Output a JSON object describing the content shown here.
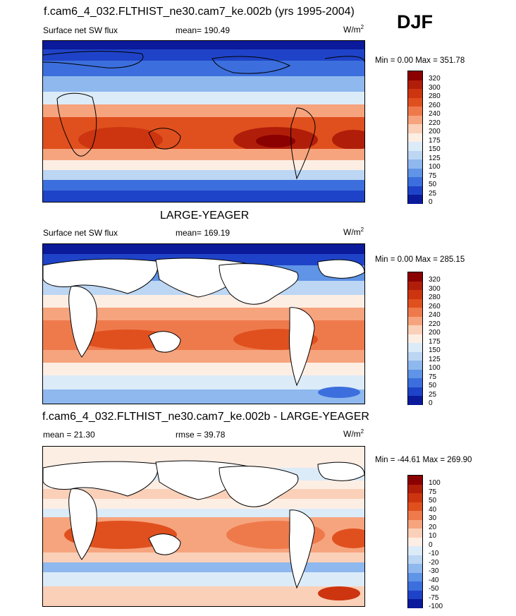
{
  "header": {
    "title": "f.cam6_4_032.FLTHIST_ne30.cam7_ke.002b (yrs 1995-2004)",
    "season": "DJF"
  },
  "panels": [
    {
      "title": "",
      "left_label": "Surface net SW flux",
      "mid_label": "mean= 190.49",
      "units_base": "W/m",
      "units_sup": "2",
      "minmax": "Min =   0.00 Max = 351.78",
      "levels": [
        "320",
        "300",
        "280",
        "260",
        "240",
        "220",
        "200",
        "175",
        "150",
        "125",
        "100",
        "75",
        "50",
        "25",
        "0"
      ]
    },
    {
      "title": "LARGE-YEAGER",
      "left_label": "Surface net SW flux",
      "mid_label": "mean= 169.19",
      "units_base": "W/m",
      "units_sup": "2",
      "minmax": "Min =   0.00 Max = 285.15",
      "levels": [
        "320",
        "300",
        "280",
        "260",
        "240",
        "220",
        "200",
        "175",
        "150",
        "125",
        "100",
        "75",
        "50",
        "25",
        "0"
      ]
    },
    {
      "title": "f.cam6_4_032.FLTHIST_ne30.cam7_ke.002b - LARGE-YEAGER",
      "left_label": "mean =  21.30",
      "mid_label": "rmse =  39.78",
      "units_base": "W/m",
      "units_sup": "2",
      "minmax": "Min = -44.61 Max = 269.90",
      "levels": [
        "100",
        "75",
        "50",
        "40",
        "30",
        "20",
        "10",
        "0",
        "-10",
        "-20",
        "-30",
        "-40",
        "-50",
        "-75",
        "-100"
      ]
    }
  ],
  "colors": {
    "scale": [
      "#8b0000",
      "#b01e0a",
      "#cc3510",
      "#e0501e",
      "#ee7a4c",
      "#f6a47e",
      "#fbd0b8",
      "#fdeee4",
      "#dcebf8",
      "#bcd6f3",
      "#8fb8ee",
      "#5f94e6",
      "#3c6fdd",
      "#1f43c8",
      "#0a1a9a",
      "#00008b"
    ],
    "land": "#ffffff"
  }
}
